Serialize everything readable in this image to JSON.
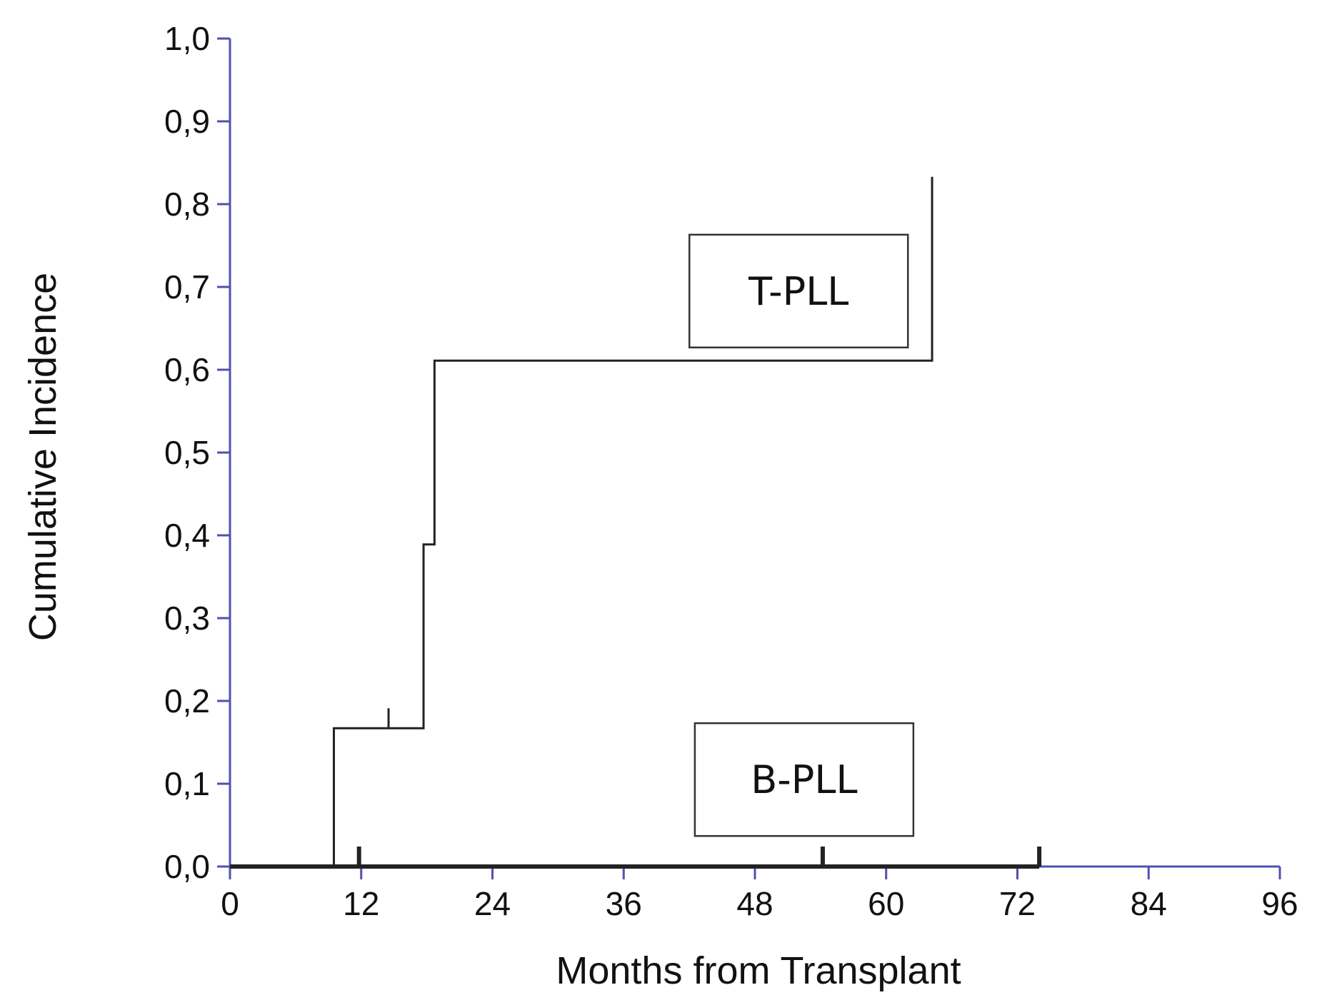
{
  "chart_data": {
    "type": "line",
    "subtype": "step / cumulative incidence",
    "title": "",
    "xlabel": "Months from Transplant",
    "ylabel": "Cumulative Incidence",
    "xlim": [
      0,
      96
    ],
    "ylim": [
      0,
      1
    ],
    "xticks": [
      "0",
      "12",
      "24",
      "36",
      "48",
      "60",
      "72",
      "84",
      "96"
    ],
    "yticks": [
      "0,0",
      "0,1",
      "0,2",
      "0,3",
      "0,4",
      "0,5",
      "0,6",
      "0,7",
      "0,8",
      "0,9",
      "1,0"
    ],
    "grid": false,
    "axis_color": "#5050b0",
    "line_color": "#222222",
    "series": [
      {
        "name": "T-PLL",
        "steps": [
          [
            0,
            0
          ],
          [
            9.5,
            0
          ],
          [
            9.5,
            0.167
          ],
          [
            17.7,
            0.167
          ],
          [
            17.7,
            0.389
          ],
          [
            18.7,
            0.389
          ],
          [
            18.7,
            0.611
          ],
          [
            64.2,
            0.611
          ],
          [
            64.2,
            0.833
          ]
        ],
        "censored": [
          [
            14.5,
            0.167
          ]
        ]
      },
      {
        "name": "B-PLL",
        "steps": [
          [
            0,
            0
          ],
          [
            74,
            0
          ]
        ],
        "censored": [
          [
            11.8,
            0
          ],
          [
            54.2,
            0
          ],
          [
            74,
            0
          ]
        ]
      }
    ],
    "annotations": [
      {
        "text": "T-PLL",
        "x": 52,
        "y": 0.695
      },
      {
        "text": "B-PLL",
        "x": 52.5,
        "y": 0.105
      }
    ]
  }
}
